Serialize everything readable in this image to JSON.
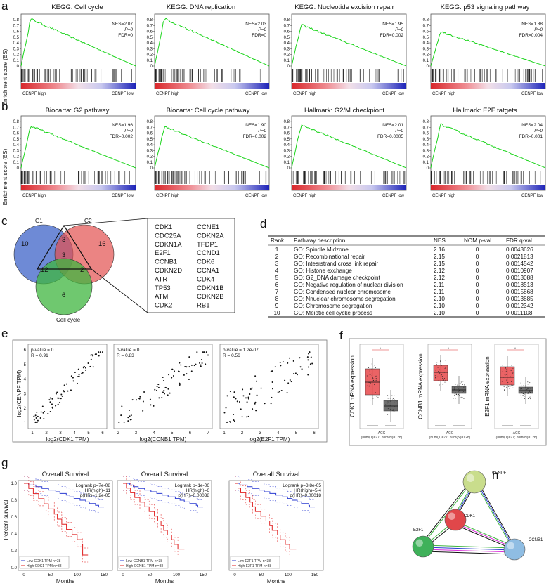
{
  "panels": {
    "a": "a",
    "b": "b",
    "c": "c",
    "d": "d",
    "e": "e",
    "f": "f",
    "g": "g",
    "h": "h"
  },
  "gsea": {
    "ylabel": "Enrichment score (ES)",
    "yticks": [
      "0.8",
      "0.7",
      "0.6",
      "0.5",
      "0.4",
      "0.3",
      "0.2",
      "0.1",
      "0"
    ],
    "high_label": "CENPF high",
    "low_label": "CENPF low",
    "plots": [
      {
        "title": "KEGG: Cell cycle",
        "nes": "NES=2.07",
        "p": "P=0",
        "fdr": "FDR=0",
        "peak": 0.82
      },
      {
        "title": "KEGG: DNA replication",
        "nes": "NES=2.03",
        "p": "P=0",
        "fdr": "FDR=0",
        "peak": 0.83
      },
      {
        "title": "KEGG: Nucleotide excision repair",
        "nes": "NES=1.95",
        "p": "P=0",
        "fdr": "FDR=0.002",
        "peak": 0.72
      },
      {
        "title": "KEGG: p53 signaling pathway",
        "nes": "NES=1.88",
        "p": "P=0",
        "fdr": "FDR=0.004",
        "peak": 0.6
      },
      {
        "title": "Biocarta: G2 pathway",
        "nes": "NES=1.96",
        "p": "P=0",
        "fdr": "FDR=0.002",
        "peak": 0.73
      },
      {
        "title": "Biocarta: Cell cycle pathway",
        "nes": "NES=1.90",
        "p": "P=0",
        "fdr": "FDR=0.002",
        "peak": 0.72
      },
      {
        "title": "Hallmark: G2/M checkpiont",
        "nes": "NES=2.01",
        "p": "P=0",
        "fdr": "FDR=0.0005",
        "peak": 0.75
      },
      {
        "title": "Hallmark: E2F tatgets",
        "nes": "NES=2.04",
        "p": "P=0",
        "fdr": "FDR=0.001",
        "peak": 0.76
      }
    ]
  },
  "venn": {
    "g1": "G1",
    "g2": "G2",
    "cc": "Cell cycle",
    "only_g1": "10",
    "only_g2": "16",
    "g1_g2": "3",
    "all": "3",
    "g1_cc": "12",
    "g2_cc": "2",
    "only_cc": "6",
    "genes_col1": [
      "CDK1",
      "CDC25A",
      "CDKN1A",
      "E2F1",
      "CCNB1",
      "CDKN2D",
      "ATR",
      "TP53",
      "ATM",
      "CDK2"
    ],
    "genes_col2": [
      "CCNE1",
      "CDKN2A",
      "TFDP1",
      "CCND1",
      "CDK6",
      "CCNA1",
      "CDK4",
      "CDKN1B",
      "CDKN2B",
      "RB1"
    ],
    "highlight": [
      "CDK1",
      "E2F1",
      "CCNB1"
    ],
    "highlight_color": "#d42a2a"
  },
  "table": {
    "headers": [
      "Rank",
      "Pathway description",
      "NES",
      "NOM p-val",
      "FDR q-val"
    ],
    "rows": [
      [
        "1",
        "GO: Spindle Midzone",
        "2.16",
        "0",
        "0.0043626"
      ],
      [
        "2",
        "GO: Recombinational repair",
        "2.15",
        "0",
        "0.0021813"
      ],
      [
        "3",
        "GO: Intesrstrand cross link repair",
        "2.15",
        "0",
        "0.0014542"
      ],
      [
        "4",
        "GO: Histone exchange",
        "2.12",
        "0",
        "0.0010907"
      ],
      [
        "5",
        "GO: G2_DNA damage checkpoint",
        "2.12",
        "0",
        "0.0013088"
      ],
      [
        "6",
        "GO: Negative regulation of nuclear division",
        "2.11",
        "0",
        "0.0018513"
      ],
      [
        "7",
        "GO: Condensed nuclear chromosome",
        "2.11",
        "0",
        "0.0015868"
      ],
      [
        "8",
        "GO: Nnuclear chromosome segregation",
        "2.10",
        "0",
        "0.0013885"
      ],
      [
        "9",
        "GO: Chromosome segregation",
        "2.10",
        "0",
        "0.0012342"
      ],
      [
        "10",
        "GO: Meiotic cell cycke process",
        "2.10",
        "0",
        "0.0011108"
      ]
    ]
  },
  "correlation": {
    "ylabel": "log2(CENPF TPM)",
    "yticks": [
      "1",
      "2",
      "3",
      "4",
      "5",
      "6"
    ],
    "plots": [
      {
        "xlabel": "log2(CDK1 TPM)",
        "pv": "p-value = 0",
        "r": "R = 0.91",
        "xticks": [
          "1",
          "2",
          "3",
          "4",
          "5",
          "6"
        ],
        "slope": 1.0,
        "noise": 0.5
      },
      {
        "xlabel": "log2(CCNB1 TPM)",
        "pv": "p-value = 0",
        "r": "R = 0.83",
        "xticks": [
          "2",
          "3",
          "4",
          "5",
          "6",
          "7"
        ],
        "slope": 0.9,
        "noise": 0.8
      },
      {
        "xlabel": "log2(E2F1 TPM)",
        "pv": "p-value = 1.2e-07",
        "r": "R = 0.56",
        "xticks": [
          "1",
          "2",
          "3",
          "4",
          "5",
          "6"
        ],
        "slope": 0.7,
        "noise": 1.3
      }
    ]
  },
  "expression": {
    "sig": "*",
    "group_label": "ACC",
    "counts": "(num(T)=77; num(N)=128)",
    "plots": [
      {
        "ylabel": "CDK1 mRNA expression",
        "t_box": [
          0.38,
          0.56,
          0.75
        ],
        "n_box": [
          0.15,
          0.22,
          0.3
        ]
      },
      {
        "ylabel": "CCNB1 mRNA expression",
        "t_box": [
          0.58,
          0.7,
          0.8
        ],
        "n_box": [
          0.4,
          0.45,
          0.5
        ]
      },
      {
        "ylabel": "E2F1 mRNA expression",
        "t_box": [
          0.52,
          0.63,
          0.78
        ],
        "n_box": [
          0.4,
          0.44,
          0.49
        ]
      }
    ],
    "tumor_color": "#e8484a",
    "normal_color": "#555555"
  },
  "survival": {
    "ylabel": "Percent survival",
    "xlabel": "Months",
    "title": "Overall Survival",
    "yticks": [
      "1.0",
      "0.8",
      "0.6",
      "0.4",
      "0.2",
      "0.0"
    ],
    "xticks": [
      "0",
      "50",
      "100",
      "150"
    ],
    "plots": [
      {
        "lr": "Logrank p=7e-08",
        "hr": "HR(high)=11",
        "phr": "p(HR)=1.2e-05",
        "low": "Low CDK1 TPM  n=38",
        "high": "High CDK1 TPM  n=38"
      },
      {
        "lr": "Logrank p=1e-06",
        "hr": "HR(high)=6",
        "phr": "p(HR)=0.00038",
        "low": "Low CCNB1 TPM  n=38",
        "high": "High CCNB1 TPM  n=38"
      },
      {
        "lr": "Logrank p=3.8e-05",
        "hr": "HR(high)=5.4",
        "phr": "p(HR)=0.00018",
        "low": "Low E2F1 TPM  n=38",
        "high": "High E2F1 TPM  n=38"
      }
    ],
    "low_color": "#2a3bd1",
    "high_color": "#e02020"
  },
  "network": {
    "nodes": [
      {
        "id": "CENPF",
        "color": "#c9dd8c"
      },
      {
        "id": "CDK1",
        "color": "#e0474a"
      },
      {
        "id": "E2F1",
        "color": "#3fb15a"
      },
      {
        "id": "CCNB1",
        "color": "#8fbde3"
      }
    ]
  },
  "colors": {
    "es_line": "#19d419",
    "venn_g1": "#3d63c8",
    "venn_g2": "#e2504e",
    "venn_cc": "#3fb53f"
  }
}
